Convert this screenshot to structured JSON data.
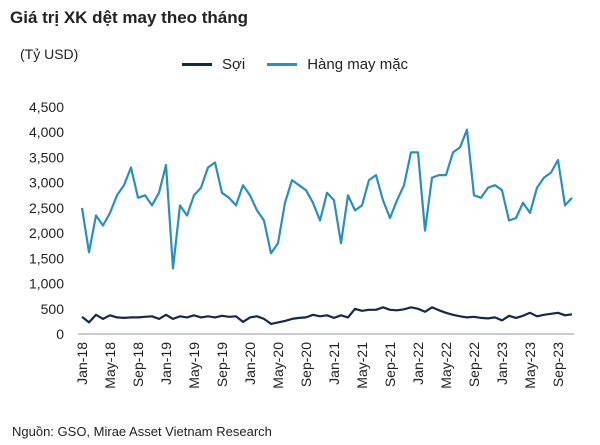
{
  "title": "Giá trị XK dệt may theo tháng",
  "unit": "(Tỷ USD)",
  "source": "Nguồn: GSO, Mirae Asset Vietnam Research",
  "colors": {
    "soi": "#14294a",
    "hang": "#2a8fbd"
  },
  "chart_data": {
    "type": "line",
    "ylim": [
      0,
      4500
    ],
    "yticks": [
      0,
      500,
      1000,
      1500,
      2000,
      2500,
      3000,
      3500,
      4000,
      4500
    ],
    "ytick_labels": [
      "0",
      "500",
      "1,000",
      "1,500",
      "2,000",
      "2,500",
      "3,000",
      "3,500",
      "4,000",
      "4,500"
    ],
    "x": [
      "Jan-18",
      "Feb-18",
      "Mar-18",
      "Apr-18",
      "May-18",
      "Jun-18",
      "Jul-18",
      "Aug-18",
      "Sep-18",
      "Oct-18",
      "Nov-18",
      "Dec-18",
      "Jan-19",
      "Feb-19",
      "Mar-19",
      "Apr-19",
      "May-19",
      "Jun-19",
      "Jul-19",
      "Aug-19",
      "Sep-19",
      "Oct-19",
      "Nov-19",
      "Dec-19",
      "Jan-20",
      "Feb-20",
      "Mar-20",
      "Apr-20",
      "May-20",
      "Jun-20",
      "Jul-20",
      "Aug-20",
      "Sep-20",
      "Oct-20",
      "Nov-20",
      "Dec-20",
      "Jan-21",
      "Feb-21",
      "Mar-21",
      "Apr-21",
      "May-21",
      "Jun-21",
      "Jul-21",
      "Aug-21",
      "Sep-21",
      "Oct-21",
      "Nov-21",
      "Dec-21",
      "Jan-22",
      "Feb-22",
      "Mar-22",
      "Apr-22",
      "May-22",
      "Jun-22",
      "Jul-22",
      "Aug-22",
      "Sep-22",
      "Oct-22",
      "Nov-22",
      "Dec-22",
      "Jan-23",
      "Feb-23",
      "Mar-23",
      "Apr-23",
      "May-23",
      "Jun-23",
      "Jul-23",
      "Aug-23",
      "Sep-23",
      "Oct-23",
      "Nov-23"
    ],
    "tick_labels": [
      "Jan-18",
      "May-18",
      "Sep-18",
      "Jan-19",
      "May-19",
      "Sep-19",
      "Jan-20",
      "May-20",
      "Sep-20",
      "Jan-21",
      "May-21",
      "Sep-21",
      "Jan-22",
      "May-22",
      "Sep-22",
      "Jan-23",
      "May-23",
      "Sep-23"
    ],
    "series": [
      {
        "name": "Sợi",
        "values": [
          340,
          230,
          380,
          300,
          370,
          330,
          320,
          330,
          330,
          340,
          350,
          300,
          380,
          300,
          350,
          330,
          370,
          330,
          350,
          330,
          360,
          340,
          350,
          240,
          330,
          350,
          300,
          200,
          230,
          260,
          300,
          320,
          330,
          380,
          350,
          370,
          320,
          370,
          330,
          500,
          460,
          480,
          480,
          530,
          480,
          470,
          490,
          530,
          500,
          440,
          530,
          470,
          420,
          380,
          350,
          330,
          340,
          320,
          310,
          330,
          270,
          360,
          320,
          360,
          420,
          350,
          380,
          400,
          420,
          370,
          390
        ]
      },
      {
        "name": "Hàng may mặc",
        "values": [
          2500,
          1620,
          2350,
          2150,
          2400,
          2750,
          2950,
          3300,
          2700,
          2750,
          2550,
          2800,
          3350,
          1300,
          2550,
          2350,
          2750,
          2900,
          3300,
          3400,
          2800,
          2700,
          2550,
          2950,
          2750,
          2450,
          2250,
          1600,
          1800,
          2600,
          3050,
          2950,
          2850,
          2600,
          2250,
          2800,
          2650,
          1800,
          2750,
          2450,
          2550,
          3050,
          3150,
          2650,
          2300,
          2650,
          2950,
          3600,
          3600,
          2050,
          3100,
          3150,
          3150,
          3600,
          3700,
          4050,
          2750,
          2700,
          2900,
          2950,
          2850,
          2250,
          2300,
          2600,
          2400,
          2900,
          3100,
          3200,
          3450,
          2550,
          2700
        ]
      }
    ]
  }
}
